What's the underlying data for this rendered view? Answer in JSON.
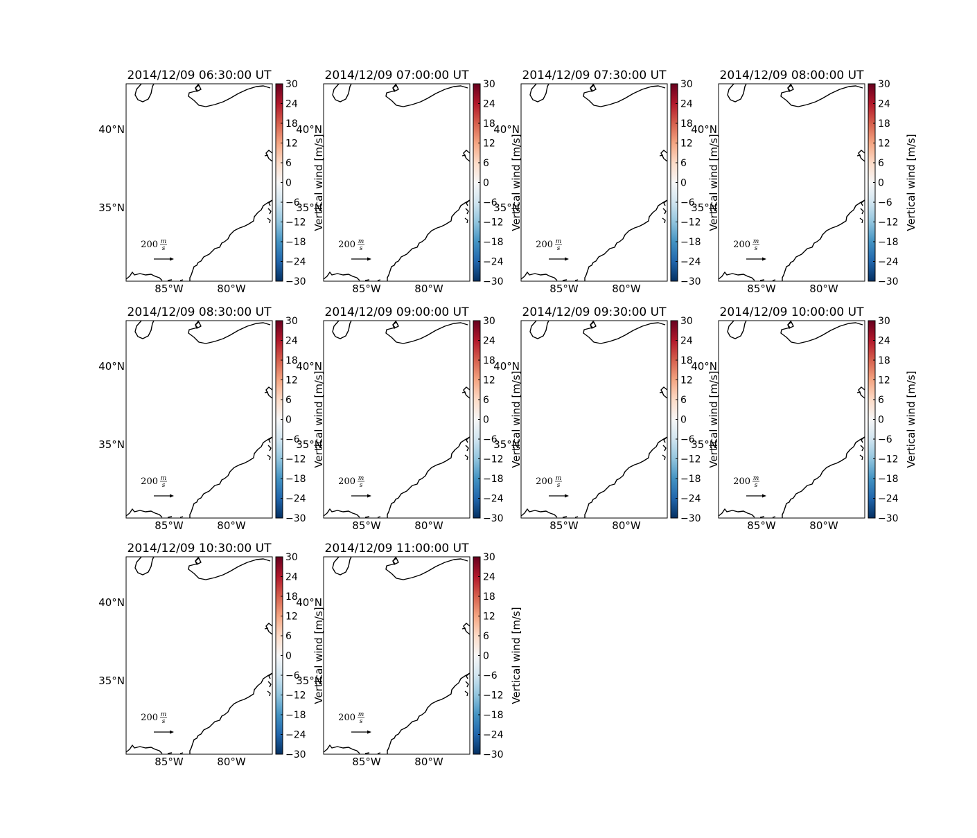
{
  "figure": {
    "panels": [
      {
        "title": "2014/12/09 06:30:00 UT"
      },
      {
        "title": "2014/12/09 07:00:00 UT"
      },
      {
        "title": "2014/12/09 07:30:00 UT"
      },
      {
        "title": "2014/12/09 08:00:00 UT"
      },
      {
        "title": "2014/12/09 08:30:00 UT"
      },
      {
        "title": "2014/12/09 09:00:00 UT"
      },
      {
        "title": "2014/12/09 09:30:00 UT"
      },
      {
        "title": "2014/12/09 10:00:00 UT"
      },
      {
        "title": "2014/12/09 10:30:00 UT"
      },
      {
        "title": "2014/12/09 11:00:00 UT"
      }
    ],
    "lat_ticks": [
      "40°N",
      "35°N"
    ],
    "lon_ticks": [
      "85°W",
      "80°W"
    ],
    "colorbar": {
      "label": "Vertical wind [m/s]",
      "ticks": [
        "30",
        "24",
        "18",
        "12",
        "6",
        "0",
        "−6",
        "−12",
        "−18",
        "−24",
        "−30"
      ],
      "range": [
        -30,
        30
      ],
      "colormap": "RdBu_r",
      "colors": [
        "#67001f",
        "#b2182b",
        "#d6604d",
        "#f4a582",
        "#fddbc7",
        "#f7f7f7",
        "#d1e5f0",
        "#92c5de",
        "#4393c3",
        "#2166ac",
        "#053061"
      ]
    },
    "quiver_key": {
      "value": "200",
      "num": "m",
      "den": "s"
    },
    "layout": {
      "columns": 4,
      "rows": 3
    }
  }
}
